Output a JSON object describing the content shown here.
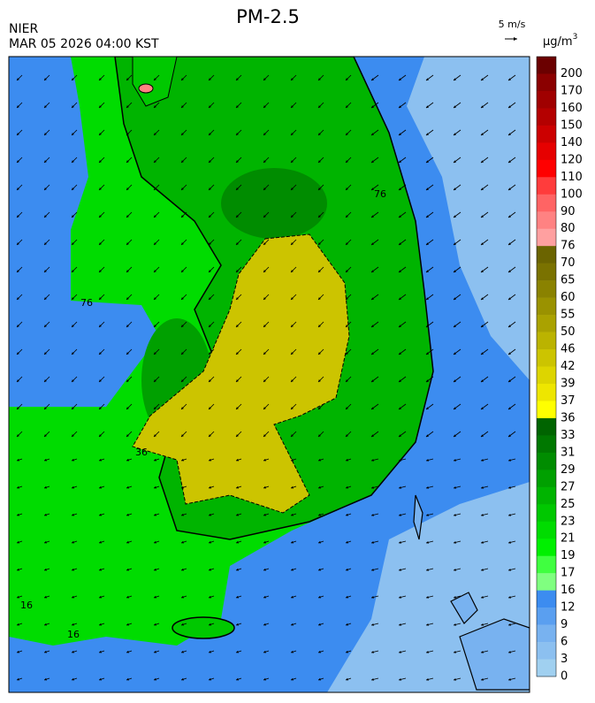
{
  "header": {
    "title": "PM-2.5",
    "agency": "NIER",
    "timestamp": "MAR 05 2026 04:00 KST",
    "wind_scale": "5 m/s"
  },
  "colorbar": {
    "unit": "μg/m",
    "unit_superscript": "3",
    "levels": [
      200,
      170,
      160,
      150,
      140,
      120,
      110,
      100,
      90,
      80,
      76,
      70,
      65,
      60,
      55,
      50,
      46,
      42,
      39,
      37,
      36,
      33,
      31,
      29,
      27,
      25,
      23,
      21,
      19,
      17,
      16,
      12,
      9,
      6,
      3,
      0
    ],
    "colors": [
      "#6b0000",
      "#8b0000",
      "#a00000",
      "#b40000",
      "#cc0000",
      "#e60000",
      "#ff0000",
      "#ff3c3c",
      "#ff6464",
      "#ff8282",
      "#ffa0a0",
      "#6b6400",
      "#7a7200",
      "#8a8200",
      "#9a9200",
      "#aaa200",
      "#bbb300",
      "#ccc400",
      "#ddd500",
      "#eee600",
      "#ffff00",
      "#006400",
      "#007800",
      "#008c00",
      "#00a000",
      "#00b400",
      "#00c800",
      "#00dc00",
      "#00f000",
      "#40ff40",
      "#80ff80",
      "#3c8cf0",
      "#5a9ff0",
      "#78b2f0",
      "#8cc0f0",
      "#a0d0f0"
    ]
  },
  "map": {
    "contour_labels": [
      76,
      76,
      36,
      16,
      16
    ]
  }
}
